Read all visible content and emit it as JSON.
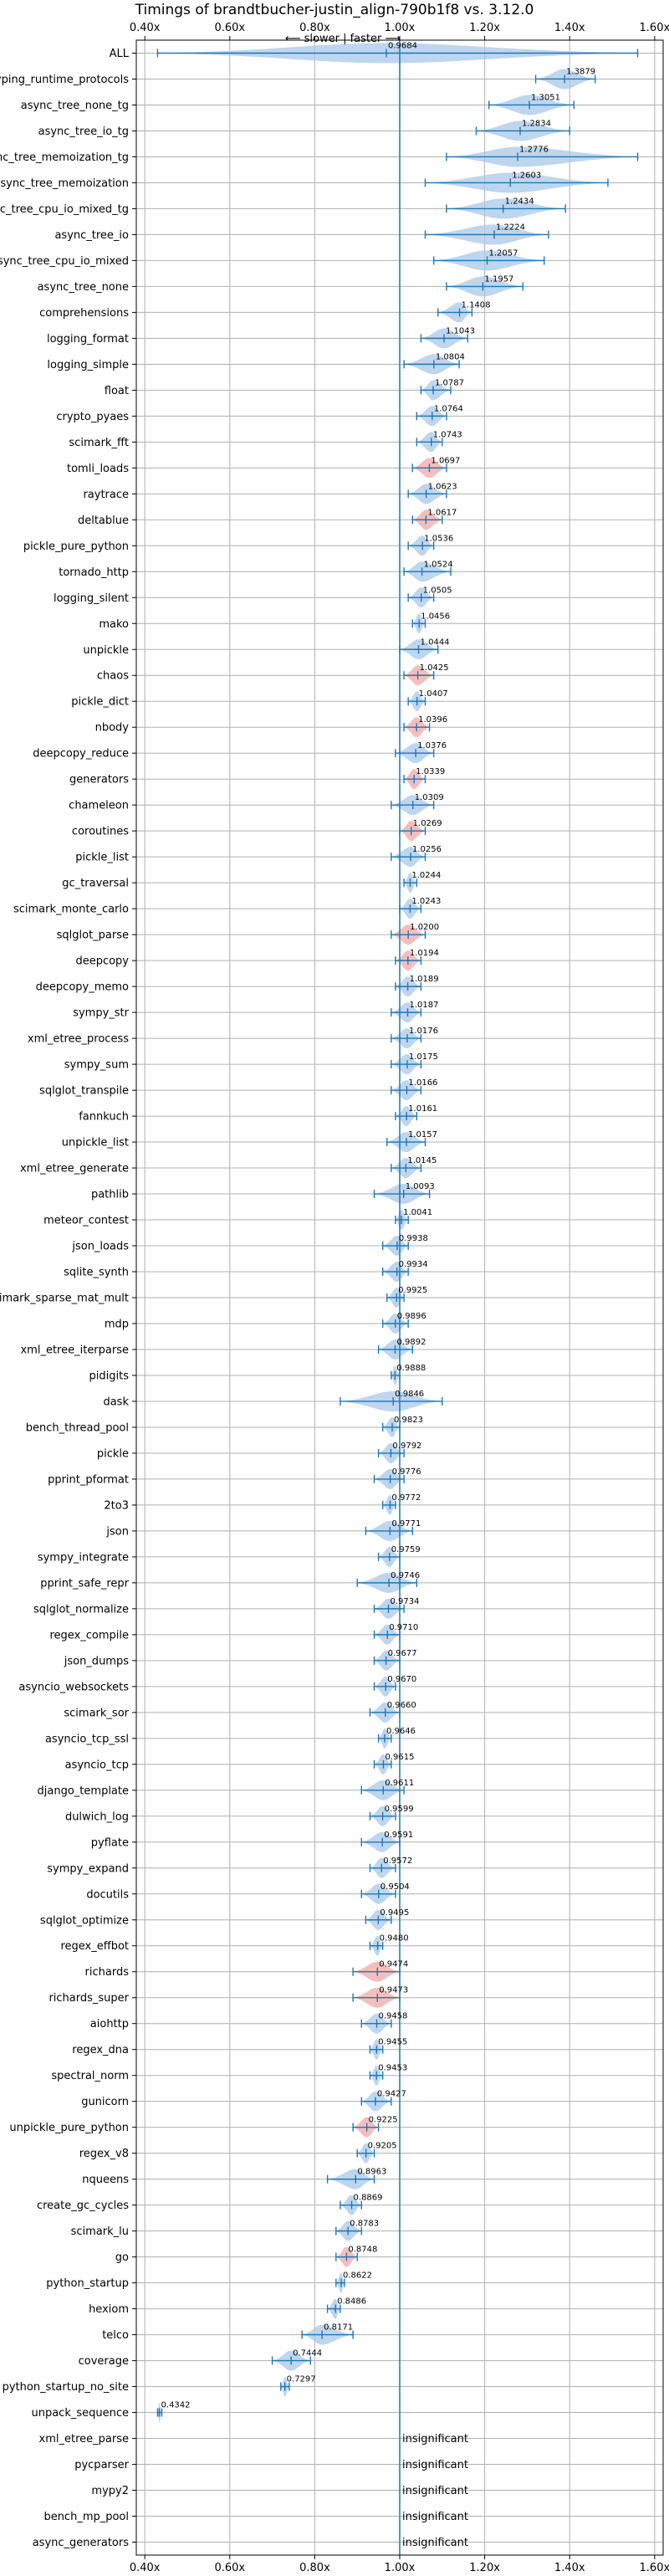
{
  "chart_data": {
    "type": "violin",
    "title": "Timings of brandtbucher-justin_align-790b1f8 vs. 3.12.0",
    "subtitle": "⟵ slower  |  faster ⟶",
    "x_ticks": [
      0.4,
      0.6,
      0.8,
      1.0,
      1.2,
      1.4,
      1.6
    ],
    "x_tick_labels": [
      "0.40x",
      "0.60x",
      "0.80x",
      "1.00x",
      "1.20x",
      "1.40x",
      "1.60x"
    ],
    "xlim": [
      0.38,
      1.62
    ],
    "reference_line": 1.0,
    "grid": true,
    "colors": {
      "normal": "#a8c8e8",
      "highlight": "#f0a8a8",
      "line": "#1f77b4"
    },
    "benchmarks": [
      {
        "name": "ALL",
        "value": "0.9684",
        "mean": 0.9684,
        "lo": 0.43,
        "hi": 1.56,
        "hl": false
      },
      {
        "name": "typing_runtime_protocols",
        "value": "1.3879",
        "mean": 1.3879,
        "lo": 1.32,
        "hi": 1.46,
        "hl": false
      },
      {
        "name": "async_tree_none_tg",
        "value": "1.3051",
        "mean": 1.3051,
        "lo": 1.21,
        "hi": 1.41,
        "hl": false
      },
      {
        "name": "async_tree_io_tg",
        "value": "1.2834",
        "mean": 1.2834,
        "lo": 1.18,
        "hi": 1.4,
        "hl": false
      },
      {
        "name": "async_tree_memoization_tg",
        "value": "1.2776",
        "mean": 1.2776,
        "lo": 1.11,
        "hi": 1.56,
        "hl": false
      },
      {
        "name": "async_tree_memoization",
        "value": "1.2603",
        "mean": 1.2603,
        "lo": 1.06,
        "hi": 1.49,
        "hl": false
      },
      {
        "name": "async_tree_cpu_io_mixed_tg",
        "value": "1.2434",
        "mean": 1.2434,
        "lo": 1.11,
        "hi": 1.39,
        "hl": false
      },
      {
        "name": "async_tree_io",
        "value": "1.2224",
        "mean": 1.2224,
        "lo": 1.06,
        "hi": 1.35,
        "hl": false
      },
      {
        "name": "async_tree_cpu_io_mixed",
        "value": "1.2057",
        "mean": 1.2057,
        "lo": 1.08,
        "hi": 1.34,
        "hl": false
      },
      {
        "name": "async_tree_none",
        "value": "1.1957",
        "mean": 1.1957,
        "lo": 1.11,
        "hi": 1.29,
        "hl": false
      },
      {
        "name": "comprehensions",
        "value": "1.1408",
        "mean": 1.1408,
        "lo": 1.09,
        "hi": 1.17,
        "hl": false
      },
      {
        "name": "logging_format",
        "value": "1.1043",
        "mean": 1.1043,
        "lo": 1.05,
        "hi": 1.16,
        "hl": false
      },
      {
        "name": "logging_simple",
        "value": "1.0804",
        "mean": 1.0804,
        "lo": 1.01,
        "hi": 1.14,
        "hl": false
      },
      {
        "name": "float",
        "value": "1.0787",
        "mean": 1.0787,
        "lo": 1.05,
        "hi": 1.12,
        "hl": false
      },
      {
        "name": "crypto_pyaes",
        "value": "1.0764",
        "mean": 1.0764,
        "lo": 1.04,
        "hi": 1.11,
        "hl": false
      },
      {
        "name": "scimark_fft",
        "value": "1.0743",
        "mean": 1.0743,
        "lo": 1.04,
        "hi": 1.1,
        "hl": false
      },
      {
        "name": "tomli_loads",
        "value": "1.0697",
        "mean": 1.0697,
        "lo": 1.03,
        "hi": 1.11,
        "hl": true
      },
      {
        "name": "raytrace",
        "value": "1.0623",
        "mean": 1.0623,
        "lo": 1.02,
        "hi": 1.11,
        "hl": false
      },
      {
        "name": "deltablue",
        "value": "1.0617",
        "mean": 1.0617,
        "lo": 1.03,
        "hi": 1.1,
        "hl": true
      },
      {
        "name": "pickle_pure_python",
        "value": "1.0536",
        "mean": 1.0536,
        "lo": 1.02,
        "hi": 1.08,
        "hl": false
      },
      {
        "name": "tornado_http",
        "value": "1.0524",
        "mean": 1.0524,
        "lo": 1.01,
        "hi": 1.12,
        "hl": false
      },
      {
        "name": "logging_silent",
        "value": "1.0505",
        "mean": 1.0505,
        "lo": 1.02,
        "hi": 1.08,
        "hl": false
      },
      {
        "name": "mako",
        "value": "1.0456",
        "mean": 1.0456,
        "lo": 1.03,
        "hi": 1.06,
        "hl": false
      },
      {
        "name": "unpickle",
        "value": "1.0444",
        "mean": 1.0444,
        "lo": 1.0,
        "hi": 1.09,
        "hl": false
      },
      {
        "name": "chaos",
        "value": "1.0425",
        "mean": 1.0425,
        "lo": 1.01,
        "hi": 1.08,
        "hl": true
      },
      {
        "name": "pickle_dict",
        "value": "1.0407",
        "mean": 1.0407,
        "lo": 1.02,
        "hi": 1.06,
        "hl": false
      },
      {
        "name": "nbody",
        "value": "1.0396",
        "mean": 1.0396,
        "lo": 1.01,
        "hi": 1.07,
        "hl": true
      },
      {
        "name": "deepcopy_reduce",
        "value": "1.0376",
        "mean": 1.0376,
        "lo": 0.99,
        "hi": 1.08,
        "hl": false
      },
      {
        "name": "generators",
        "value": "1.0339",
        "mean": 1.0339,
        "lo": 1.01,
        "hi": 1.06,
        "hl": true
      },
      {
        "name": "chameleon",
        "value": "1.0309",
        "mean": 1.0309,
        "lo": 0.98,
        "hi": 1.08,
        "hl": false
      },
      {
        "name": "coroutines",
        "value": "1.0269",
        "mean": 1.0269,
        "lo": 1.0,
        "hi": 1.06,
        "hl": true
      },
      {
        "name": "pickle_list",
        "value": "1.0256",
        "mean": 1.0256,
        "lo": 0.98,
        "hi": 1.06,
        "hl": false
      },
      {
        "name": "gc_traversal",
        "value": "1.0244",
        "mean": 1.0244,
        "lo": 1.01,
        "hi": 1.04,
        "hl": false
      },
      {
        "name": "scimark_monte_carlo",
        "value": "1.0243",
        "mean": 1.0243,
        "lo": 1.0,
        "hi": 1.05,
        "hl": false
      },
      {
        "name": "sqlglot_parse",
        "value": "1.0200",
        "mean": 1.02,
        "lo": 0.98,
        "hi": 1.06,
        "hl": true
      },
      {
        "name": "deepcopy",
        "value": "1.0194",
        "mean": 1.0194,
        "lo": 0.99,
        "hi": 1.05,
        "hl": true
      },
      {
        "name": "deepcopy_memo",
        "value": "1.0189",
        "mean": 1.0189,
        "lo": 0.99,
        "hi": 1.05,
        "hl": false
      },
      {
        "name": "sympy_str",
        "value": "1.0187",
        "mean": 1.0187,
        "lo": 0.98,
        "hi": 1.05,
        "hl": false
      },
      {
        "name": "xml_etree_process",
        "value": "1.0176",
        "mean": 1.0176,
        "lo": 0.98,
        "hi": 1.05,
        "hl": false
      },
      {
        "name": "sympy_sum",
        "value": "1.0175",
        "mean": 1.0175,
        "lo": 0.98,
        "hi": 1.05,
        "hl": false
      },
      {
        "name": "sqlglot_transpile",
        "value": "1.0166",
        "mean": 1.0166,
        "lo": 0.98,
        "hi": 1.05,
        "hl": false
      },
      {
        "name": "fannkuch",
        "value": "1.0161",
        "mean": 1.0161,
        "lo": 0.99,
        "hi": 1.04,
        "hl": false
      },
      {
        "name": "unpickle_list",
        "value": "1.0157",
        "mean": 1.0157,
        "lo": 0.97,
        "hi": 1.06,
        "hl": false
      },
      {
        "name": "xml_etree_generate",
        "value": "1.0145",
        "mean": 1.0145,
        "lo": 0.98,
        "hi": 1.05,
        "hl": false
      },
      {
        "name": "pathlib",
        "value": "1.0093",
        "mean": 1.0093,
        "lo": 0.94,
        "hi": 1.07,
        "hl": false
      },
      {
        "name": "meteor_contest",
        "value": "1.0041",
        "mean": 1.0041,
        "lo": 0.99,
        "hi": 1.02,
        "hl": false
      },
      {
        "name": "json_loads",
        "value": "0.9938",
        "mean": 0.9938,
        "lo": 0.96,
        "hi": 1.02,
        "hl": false
      },
      {
        "name": "sqlite_synth",
        "value": "0.9934",
        "mean": 0.9934,
        "lo": 0.96,
        "hi": 1.02,
        "hl": false
      },
      {
        "name": "scimark_sparse_mat_mult",
        "value": "0.9925",
        "mean": 0.9925,
        "lo": 0.97,
        "hi": 1.01,
        "hl": false
      },
      {
        "name": "mdp",
        "value": "0.9896",
        "mean": 0.9896,
        "lo": 0.96,
        "hi": 1.02,
        "hl": false
      },
      {
        "name": "xml_etree_iterparse",
        "value": "0.9892",
        "mean": 0.9892,
        "lo": 0.95,
        "hi": 1.03,
        "hl": false
      },
      {
        "name": "pidigits",
        "value": "0.9888",
        "mean": 0.9888,
        "lo": 0.98,
        "hi": 1.0,
        "hl": false
      },
      {
        "name": "dask",
        "value": "0.9846",
        "mean": 0.9846,
        "lo": 0.86,
        "hi": 1.1,
        "hl": false
      },
      {
        "name": "bench_thread_pool",
        "value": "0.9823",
        "mean": 0.9823,
        "lo": 0.96,
        "hi": 1.0,
        "hl": false
      },
      {
        "name": "pickle",
        "value": "0.9792",
        "mean": 0.9792,
        "lo": 0.95,
        "hi": 1.01,
        "hl": false
      },
      {
        "name": "pprint_pformat",
        "value": "0.9776",
        "mean": 0.9776,
        "lo": 0.94,
        "hi": 1.01,
        "hl": false
      },
      {
        "name": "2to3",
        "value": "0.9772",
        "mean": 0.9772,
        "lo": 0.96,
        "hi": 0.99,
        "hl": false
      },
      {
        "name": "json",
        "value": "0.9771",
        "mean": 0.9771,
        "lo": 0.92,
        "hi": 1.03,
        "hl": false
      },
      {
        "name": "sympy_integrate",
        "value": "0.9759",
        "mean": 0.9759,
        "lo": 0.95,
        "hi": 1.0,
        "hl": false
      },
      {
        "name": "pprint_safe_repr",
        "value": "0.9746",
        "mean": 0.9746,
        "lo": 0.9,
        "hi": 1.04,
        "hl": false
      },
      {
        "name": "sqlglot_normalize",
        "value": "0.9734",
        "mean": 0.9734,
        "lo": 0.94,
        "hi": 1.01,
        "hl": false
      },
      {
        "name": "regex_compile",
        "value": "0.9710",
        "mean": 0.971,
        "lo": 0.94,
        "hi": 1.0,
        "hl": false
      },
      {
        "name": "json_dumps",
        "value": "0.9677",
        "mean": 0.9677,
        "lo": 0.94,
        "hi": 1.0,
        "hl": false
      },
      {
        "name": "asyncio_websockets",
        "value": "0.9670",
        "mean": 0.967,
        "lo": 0.94,
        "hi": 0.99,
        "hl": false
      },
      {
        "name": "scimark_sor",
        "value": "0.9660",
        "mean": 0.966,
        "lo": 0.93,
        "hi": 1.0,
        "hl": false
      },
      {
        "name": "asyncio_tcp_ssl",
        "value": "0.9646",
        "mean": 0.9646,
        "lo": 0.95,
        "hi": 0.98,
        "hl": false
      },
      {
        "name": "asyncio_tcp",
        "value": "0.9615",
        "mean": 0.9615,
        "lo": 0.94,
        "hi": 0.98,
        "hl": false
      },
      {
        "name": "django_template",
        "value": "0.9611",
        "mean": 0.9611,
        "lo": 0.91,
        "hi": 1.01,
        "hl": false
      },
      {
        "name": "dulwich_log",
        "value": "0.9599",
        "mean": 0.9599,
        "lo": 0.93,
        "hi": 0.99,
        "hl": false
      },
      {
        "name": "pyflate",
        "value": "0.9591",
        "mean": 0.9591,
        "lo": 0.91,
        "hi": 1.0,
        "hl": false
      },
      {
        "name": "sympy_expand",
        "value": "0.9572",
        "mean": 0.9572,
        "lo": 0.93,
        "hi": 0.99,
        "hl": false
      },
      {
        "name": "docutils",
        "value": "0.9504",
        "mean": 0.9504,
        "lo": 0.91,
        "hi": 0.99,
        "hl": false
      },
      {
        "name": "sqlglot_optimize",
        "value": "0.9495",
        "mean": 0.9495,
        "lo": 0.92,
        "hi": 0.98,
        "hl": false
      },
      {
        "name": "regex_effbot",
        "value": "0.9480",
        "mean": 0.948,
        "lo": 0.93,
        "hi": 0.96,
        "hl": false
      },
      {
        "name": "richards",
        "value": "0.9474",
        "mean": 0.9474,
        "lo": 0.89,
        "hi": 1.0,
        "hl": true
      },
      {
        "name": "richards_super",
        "value": "0.9473",
        "mean": 0.9473,
        "lo": 0.89,
        "hi": 1.0,
        "hl": true
      },
      {
        "name": "aiohttp",
        "value": "0.9458",
        "mean": 0.9458,
        "lo": 0.91,
        "hi": 0.98,
        "hl": false
      },
      {
        "name": "regex_dna",
        "value": "0.9455",
        "mean": 0.9455,
        "lo": 0.93,
        "hi": 0.96,
        "hl": false
      },
      {
        "name": "spectral_norm",
        "value": "0.9453",
        "mean": 0.9453,
        "lo": 0.93,
        "hi": 0.96,
        "hl": false
      },
      {
        "name": "gunicorn",
        "value": "0.9427",
        "mean": 0.9427,
        "lo": 0.91,
        "hi": 0.98,
        "hl": false
      },
      {
        "name": "unpickle_pure_python",
        "value": "0.9225",
        "mean": 0.9225,
        "lo": 0.89,
        "hi": 0.95,
        "hl": true
      },
      {
        "name": "regex_v8",
        "value": "0.9205",
        "mean": 0.9205,
        "lo": 0.9,
        "hi": 0.94,
        "hl": false
      },
      {
        "name": "nqueens",
        "value": "0.8963",
        "mean": 0.8963,
        "lo": 0.83,
        "hi": 0.94,
        "hl": false
      },
      {
        "name": "create_gc_cycles",
        "value": "0.8869",
        "mean": 0.8869,
        "lo": 0.86,
        "hi": 0.91,
        "hl": false
      },
      {
        "name": "scimark_lu",
        "value": "0.8783",
        "mean": 0.8783,
        "lo": 0.85,
        "hi": 0.91,
        "hl": false
      },
      {
        "name": "go",
        "value": "0.8748",
        "mean": 0.8748,
        "lo": 0.85,
        "hi": 0.9,
        "hl": true
      },
      {
        "name": "python_startup",
        "value": "0.8622",
        "mean": 0.8622,
        "lo": 0.85,
        "hi": 0.87,
        "hl": false
      },
      {
        "name": "hexiom",
        "value": "0.8486",
        "mean": 0.8486,
        "lo": 0.83,
        "hi": 0.86,
        "hl": false
      },
      {
        "name": "telco",
        "value": "0.8171",
        "mean": 0.8171,
        "lo": 0.77,
        "hi": 0.89,
        "hl": false
      },
      {
        "name": "coverage",
        "value": "0.7444",
        "mean": 0.7444,
        "lo": 0.7,
        "hi": 0.79,
        "hl": false
      },
      {
        "name": "python_startup_no_site",
        "value": "0.7297",
        "mean": 0.7297,
        "lo": 0.72,
        "hi": 0.74,
        "hl": false
      },
      {
        "name": "unpack_sequence",
        "value": "0.4342",
        "mean": 0.4342,
        "lo": 0.43,
        "hi": 0.44,
        "hl": false
      },
      {
        "name": "xml_etree_parse",
        "value": "insignificant",
        "mean": null,
        "lo": null,
        "hi": null,
        "hl": false
      },
      {
        "name": "pycparser",
        "value": "insignificant",
        "mean": null,
        "lo": null,
        "hi": null,
        "hl": false
      },
      {
        "name": "mypy2",
        "value": "insignificant",
        "mean": null,
        "lo": null,
        "hi": null,
        "hl": false
      },
      {
        "name": "bench_mp_pool",
        "value": "insignificant",
        "mean": null,
        "lo": null,
        "hi": null,
        "hl": false
      },
      {
        "name": "async_generators",
        "value": "insignificant",
        "mean": null,
        "lo": null,
        "hi": null,
        "hl": false
      }
    ]
  }
}
